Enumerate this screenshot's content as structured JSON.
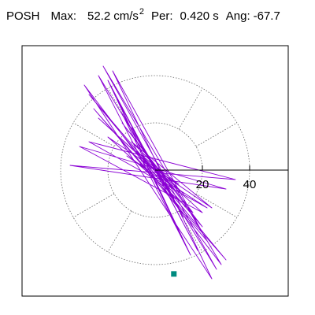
{
  "header": {
    "station": "POSH",
    "max_label": "Max:",
    "max_value": "52.2",
    "max_unit": "cm/s",
    "max_unit_sup": "2",
    "per_label": "Per:",
    "per_value": "0.420 s",
    "ang_label": "Ang:",
    "ang_value": "-67.7"
  },
  "chart_data": {
    "type": "line",
    "title": "POSH Max: 52.2 cm/s2 Per: 0.420 s Ang: -67.7",
    "xlabel": "",
    "ylabel": "",
    "axis_ticks": [
      20,
      40
    ],
    "ring_radii": [
      20,
      40
    ],
    "xlim": [
      -55,
      55
    ],
    "ylim": [
      -52,
      52
    ],
    "grid": "polar dotted",
    "peak_angle_deg": -67.7,
    "peak_radius": 52.2,
    "peak_marker_color": "#008b80",
    "trace_color": "#8a00d4",
    "series": [
      {
        "x": [
          0,
          4,
          -6,
          8,
          -10,
          12,
          -14,
          11,
          -16,
          18,
          -20,
          15,
          -24,
          26,
          -22,
          28,
          -30,
          24,
          -18,
          22,
          -26,
          30,
          -28,
          20,
          -14,
          16,
          -20,
          24,
          -10,
          12,
          -8,
          10,
          -6,
          4,
          -2,
          0
        ],
        "y": [
          0,
          -6,
          10,
          -12,
          18,
          -20,
          24,
          -28,
          30,
          -34,
          38,
          -36,
          40,
          -42,
          44,
          -40,
          36,
          -46,
          42,
          -30,
          26,
          -38,
          32,
          -24,
          20,
          -18,
          14,
          -16,
          12,
          -10,
          8,
          -6,
          4,
          -2,
          1,
          0
        ]
      },
      {
        "x": [
          0,
          -24,
          20,
          -32,
          30,
          -36,
          34,
          -28,
          22,
          -12,
          8,
          -4,
          0
        ],
        "y": [
          0,
          22,
          -18,
          10,
          -8,
          2,
          -4,
          12,
          -16,
          6,
          -8,
          4,
          0
        ]
      }
    ]
  }
}
